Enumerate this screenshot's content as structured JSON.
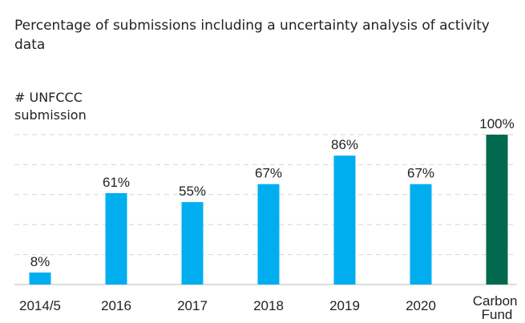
{
  "chart_data": {
    "type": "bar",
    "title": "Percentage of submissions including a uncertainty analysis of activity data",
    "y_axis_label": "# UNFCCC submission",
    "categories": [
      "2014/5",
      "2016",
      "2017",
      "2018",
      "2019",
      "2020",
      "Carbon Fund"
    ],
    "values": [
      8,
      61,
      55,
      67,
      86,
      67,
      100
    ],
    "value_labels": [
      "8%",
      "61%",
      "55%",
      "67%",
      "86%",
      "67%",
      "100%"
    ],
    "colors": [
      "#00aeef",
      "#00aeef",
      "#00aeef",
      "#00aeef",
      "#00aeef",
      "#00aeef",
      "#00694e"
    ],
    "ylim": [
      0,
      100
    ],
    "yticks": [
      0,
      20,
      40,
      60,
      80,
      100
    ],
    "grid": true
  }
}
